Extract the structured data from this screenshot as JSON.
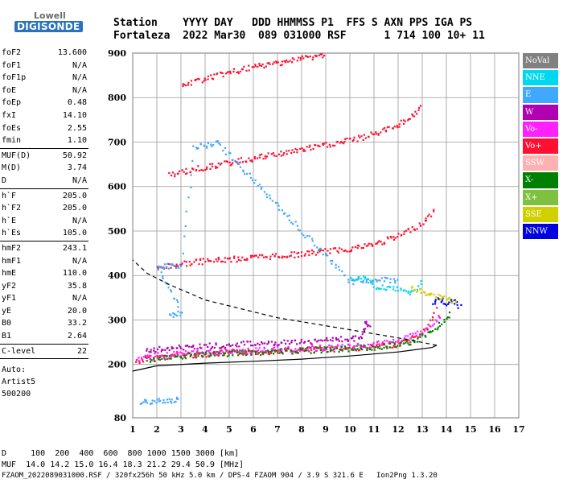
{
  "logo": {
    "top": "Lowell",
    "bottom": "DIGISONDE"
  },
  "header": {
    "line1": "Station    YYYY DAY   DDD HHMMSS P1  FFS S AXN PPS IGA PS",
    "line2": "Fortaleza  2022 Mar30  089 031000 RSF      1 714 100 10+ 11"
  },
  "params": [
    {
      "label": "foF2",
      "value": "13.600",
      "sep_after": false
    },
    {
      "label": "foF1",
      "value": "N/A",
      "sep_after": false
    },
    {
      "label": "foF1p",
      "value": "N/A",
      "sep_after": false
    },
    {
      "label": "foE",
      "value": "N/A",
      "sep_after": false
    },
    {
      "label": "foEp",
      "value": "0.48",
      "sep_after": false
    },
    {
      "label": "fxI",
      "value": "14.10",
      "sep_after": false
    },
    {
      "label": "foEs",
      "value": "2.55",
      "sep_after": false
    },
    {
      "label": "fmin",
      "value": "1.10",
      "sep_after": true
    },
    {
      "label": "MUF(D)",
      "value": "50.92",
      "sep_after": false
    },
    {
      "label": "M(D)",
      "value": "3.74",
      "sep_after": false
    },
    {
      "label": "D",
      "value": "N/A",
      "sep_after": true
    },
    {
      "label": "h`F",
      "value": "205.0",
      "sep_after": false
    },
    {
      "label": "h`F2",
      "value": "205.0",
      "sep_after": false
    },
    {
      "label": "h`E",
      "value": "N/A",
      "sep_after": false
    },
    {
      "label": "h`Es",
      "value": "105.0",
      "sep_after": true
    },
    {
      "label": "hmF2",
      "value": "243.1",
      "sep_after": false
    },
    {
      "label": "hmF1",
      "value": "N/A",
      "sep_after": false
    },
    {
      "label": "hmE",
      "value": "110.0",
      "sep_after": false
    },
    {
      "label": "yF2",
      "value": "35.8",
      "sep_after": false
    },
    {
      "label": "yF1",
      "value": "N/A",
      "sep_after": false
    },
    {
      "label": "yE",
      "value": "20.0",
      "sep_after": false
    },
    {
      "label": "B0",
      "value": "33.2",
      "sep_after": false
    },
    {
      "label": "B1",
      "value": "2.64",
      "sep_after": true
    },
    {
      "label": "C-level",
      "value": "22",
      "sep_after": true
    }
  ],
  "auto_block": [
    "Auto:",
    "Artist5",
    "500200"
  ],
  "legend": [
    {
      "label": "NoVal",
      "color": "#808080"
    },
    {
      "label": "NNE",
      "color": "#00d8f0"
    },
    {
      "label": "E",
      "color": "#40a8ff"
    },
    {
      "label": "W",
      "color": "#b000b0"
    },
    {
      "label": "Vo-",
      "color": "#ff20ff"
    },
    {
      "label": "Vo+",
      "color": "#ff1030"
    },
    {
      "label": "SSW",
      "color": "#ffb0b0"
    },
    {
      "label": "X-",
      "color": "#008000"
    },
    {
      "label": "X+",
      "color": "#80c040"
    },
    {
      "label": "SSE",
      "color": "#d0d000"
    },
    {
      "label": "NNW",
      "color": "#0000e0"
    }
  ],
  "footer": {
    "line1": "D     100  200  400  600  800 1000 1500 3000 [km]",
    "line2": "MUF  14.0 14.2 15.0 16.4 18.3 21.2 29.4 50.9 [MHz]",
    "line3": "FZAOM_2022089031000.RSF / 320fx256h 50 kHz 5.0 km / DPS-4 FZAOM 904 / 3.9 S 321.6 E   Ion2Png 1.3.20"
  },
  "chart_data": {
    "type": "scatter",
    "x_ticks": [
      1,
      2,
      3,
      4,
      5,
      6,
      7,
      8,
      9,
      10,
      11,
      12,
      13,
      14,
      15,
      16,
      17
    ],
    "y_ticks": [
      80,
      200,
      300,
      400,
      500,
      600,
      700,
      800,
      900
    ],
    "xlim": [
      1,
      17
    ],
    "ylim": [
      80,
      900
    ],
    "x_unit": "MHz",
    "y_unit": "km",
    "grid": true,
    "traces": [
      {
        "mode": "Vo+",
        "points": [
          [
            1.1,
            208
          ],
          [
            2,
            218
          ],
          [
            3,
            222
          ],
          [
            4,
            225
          ],
          [
            5,
            228
          ],
          [
            6,
            230
          ],
          [
            7,
            232
          ],
          [
            8,
            234
          ],
          [
            9,
            236
          ],
          [
            10,
            238
          ],
          [
            11,
            241
          ],
          [
            12,
            248
          ],
          [
            12.7,
            262
          ],
          [
            13.2,
            285
          ],
          [
            13.6,
            330
          ]
        ]
      },
      {
        "mode": "Vo+",
        "points": [
          [
            2,
            418
          ],
          [
            3,
            428
          ],
          [
            4,
            434
          ],
          [
            5,
            438
          ],
          [
            6,
            442
          ],
          [
            7,
            446
          ],
          [
            8,
            450
          ],
          [
            9,
            456
          ],
          [
            10,
            462
          ],
          [
            11,
            472
          ],
          [
            12,
            490
          ],
          [
            13,
            520
          ],
          [
            13.5,
            550
          ]
        ]
      },
      {
        "mode": "Vo+",
        "points": [
          [
            2.5,
            628
          ],
          [
            3.5,
            640
          ],
          [
            4.5,
            650
          ],
          [
            5.5,
            660
          ],
          [
            6.5,
            670
          ],
          [
            7.5,
            680
          ],
          [
            8.5,
            690
          ],
          [
            9.5,
            700
          ],
          [
            10.5,
            712
          ],
          [
            11.5,
            730
          ],
          [
            12.3,
            750
          ],
          [
            13,
            780
          ]
        ]
      },
      {
        "mode": "Vo+",
        "points": [
          [
            3,
            828
          ],
          [
            4,
            845
          ],
          [
            5,
            858
          ],
          [
            6,
            870
          ],
          [
            7,
            880
          ],
          [
            8,
            890
          ],
          [
            9,
            898
          ]
        ]
      },
      {
        "mode": "Vo-",
        "points": [
          [
            1.1,
            212
          ],
          [
            2,
            222
          ],
          [
            3,
            225
          ],
          [
            4,
            228
          ],
          [
            5,
            231
          ],
          [
            6,
            233
          ],
          [
            7,
            235
          ],
          [
            8,
            237
          ],
          [
            9,
            239
          ],
          [
            10,
            242
          ],
          [
            11,
            246
          ],
          [
            12,
            254
          ],
          [
            13,
            275
          ],
          [
            13.8,
            315
          ]
        ]
      },
      {
        "mode": "X-",
        "points": [
          [
            1.6,
            210
          ],
          [
            3,
            220
          ],
          [
            5,
            226
          ],
          [
            7,
            231
          ],
          [
            9,
            235
          ],
          [
            11,
            240
          ],
          [
            12.5,
            252
          ],
          [
            13.5,
            280
          ],
          [
            14.2,
            320
          ]
        ]
      },
      {
        "mode": "E",
        "points": [
          [
            2.5,
            312
          ],
          [
            3,
            318
          ],
          [
            2,
            420
          ],
          [
            3,
            426
          ],
          [
            3.5,
            690
          ],
          [
            4.5,
            700
          ],
          [
            10,
            388
          ],
          [
            11,
            392
          ],
          [
            12,
            390
          ]
        ]
      },
      {
        "mode": "NNE",
        "points": [
          [
            10,
            395
          ],
          [
            10.5,
            400
          ],
          [
            11,
            378
          ],
          [
            11.5,
            372
          ],
          [
            12,
            370
          ],
          [
            12.5,
            360
          ],
          [
            13,
            392
          ]
        ]
      },
      {
        "mode": "W",
        "points": [
          [
            1.5,
            231
          ],
          [
            2.5,
            240
          ],
          [
            3.5,
            242
          ],
          [
            5,
            246
          ],
          [
            6.5,
            250
          ],
          [
            8,
            252
          ],
          [
            9.5,
            258
          ],
          [
            10.5,
            262
          ],
          [
            10.6,
            298
          ],
          [
            10.8,
            278
          ]
        ]
      },
      {
        "mode": "E",
        "points": [
          [
            1.3,
            115
          ],
          [
            1.6,
            117
          ],
          [
            2,
            118
          ],
          [
            2.3,
            120
          ],
          [
            2.6,
            121
          ],
          [
            2.9,
            123
          ]
        ]
      },
      {
        "mode": "NNW",
        "points": [
          [
            13.4,
            340
          ],
          [
            13.7,
            352
          ],
          [
            14,
            338
          ],
          [
            14.3,
            345
          ],
          [
            14.6,
            328
          ]
        ]
      },
      {
        "mode": "SSE",
        "points": [
          [
            12.5,
            372
          ],
          [
            13,
            365
          ],
          [
            13.5,
            355
          ],
          [
            14,
            350
          ],
          [
            14.4,
            340
          ]
        ]
      }
    ],
    "theoretical_curve": [
      [
        13.6,
        243
      ],
      [
        12.5,
        255
      ],
      [
        10,
        278
      ],
      [
        7,
        305
      ],
      [
        4,
        345
      ],
      [
        2.5,
        380
      ],
      [
        1.6,
        405
      ],
      [
        1.0,
        435
      ]
    ],
    "profile_curve": [
      [
        1.0,
        185
      ],
      [
        2,
        197
      ],
      [
        4,
        203
      ],
      [
        6,
        207
      ],
      [
        8,
        212
      ],
      [
        10,
        219
      ],
      [
        12,
        228
      ],
      [
        13.4,
        238
      ],
      [
        13.6,
        243
      ]
    ]
  }
}
